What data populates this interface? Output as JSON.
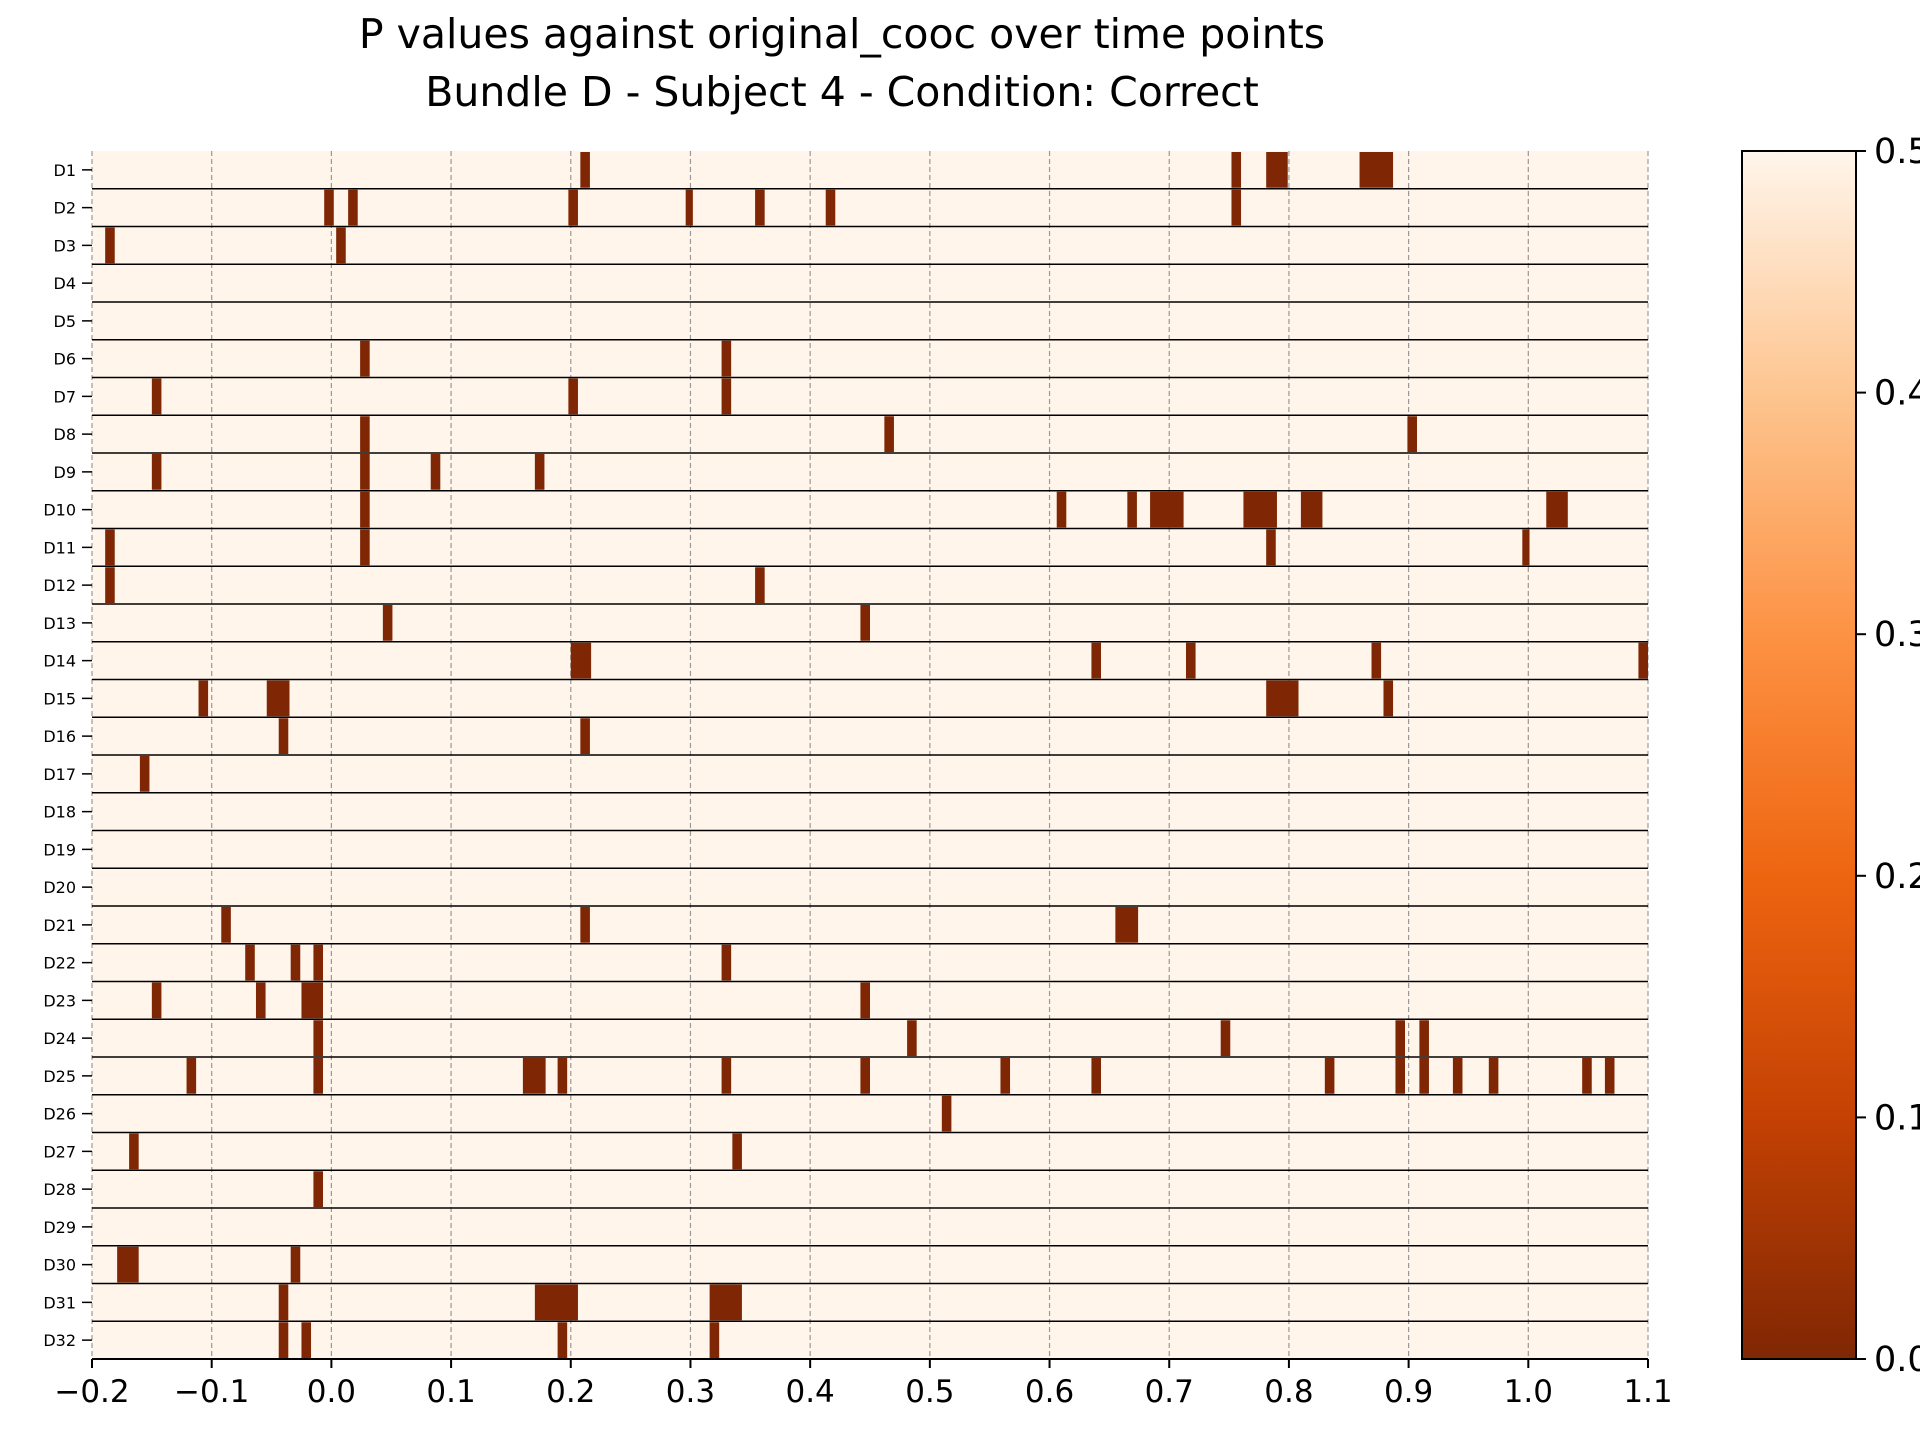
{
  "chart_data": {
    "type": "heatmap",
    "title": "P values against original_cooc over time points",
    "subtitle": "Bundle D - Subject 4 - Condition: Correct",
    "xlabel": "",
    "ylabel": "",
    "xlim": [
      -0.2,
      1.1
    ],
    "x_ticks": [
      -0.2,
      -0.1,
      0.0,
      0.1,
      0.2,
      0.3,
      0.4,
      0.5,
      0.6,
      0.7,
      0.8,
      0.9,
      1.0,
      1.1
    ],
    "x_tick_labels": [
      "−0.2",
      "−0.1",
      "0.0",
      "0.1",
      "0.2",
      "0.3",
      "0.4",
      "0.5",
      "0.6",
      "0.7",
      "0.8",
      "0.9",
      "1.0",
      "1.1"
    ],
    "rows": [
      "D1",
      "D2",
      "D3",
      "D4",
      "D5",
      "D6",
      "D7",
      "D8",
      "D9",
      "D10",
      "D11",
      "D12",
      "D13",
      "D14",
      "D15",
      "D16",
      "D17",
      "D18",
      "D19",
      "D20",
      "D21",
      "D22",
      "D23",
      "D24",
      "D25",
      "D26",
      "D27",
      "D28",
      "D29",
      "D30",
      "D31",
      "D32"
    ],
    "vertical_grid": "dashed",
    "colormap": "Oranges_r",
    "value_range": [
      0.0,
      0.5
    ],
    "background_value": 0.5,
    "colorbar": {
      "ticks": [
        0.0,
        0.1,
        0.2,
        0.3,
        0.4,
        0.5
      ],
      "tick_labels": [
        "0.0",
        "0.1",
        "0.2",
        "0.3",
        "0.4",
        "0.5"
      ],
      "colors": [
        "#7f2704",
        "#c44103",
        "#ee6510",
        "#fd9244",
        "#fdc590",
        "#fff5eb"
      ]
    },
    "significant_cells": [
      {
        "row": "D1",
        "ranges": [
          [
            0.208,
            0.216
          ],
          [
            0.752,
            0.76
          ],
          [
            0.781,
            0.799
          ],
          [
            0.859,
            0.887
          ]
        ]
      },
      {
        "row": "D2",
        "ranges": [
          [
            -0.006,
            0.002
          ],
          [
            0.014,
            0.022
          ],
          [
            0.198,
            0.206
          ],
          [
            0.296,
            0.302
          ],
          [
            0.354,
            0.362
          ],
          [
            0.413,
            0.421
          ],
          [
            0.752,
            0.76
          ]
        ]
      },
      {
        "row": "D3",
        "ranges": [
          [
            -0.189,
            -0.181
          ],
          [
            0.004,
            0.012
          ]
        ]
      },
      {
        "row": "D4",
        "ranges": []
      },
      {
        "row": "D5",
        "ranges": []
      },
      {
        "row": "D6",
        "ranges": [
          [
            0.024,
            0.032
          ],
          [
            0.326,
            0.334
          ]
        ]
      },
      {
        "row": "D7",
        "ranges": [
          [
            -0.15,
            -0.142
          ],
          [
            0.198,
            0.206
          ],
          [
            0.326,
            0.334
          ]
        ]
      },
      {
        "row": "D8",
        "ranges": [
          [
            0.024,
            0.032
          ],
          [
            0.462,
            0.47
          ],
          [
            0.899,
            0.907
          ]
        ]
      },
      {
        "row": "D9",
        "ranges": [
          [
            -0.15,
            -0.142
          ],
          [
            0.024,
            0.032
          ],
          [
            0.083,
            0.091
          ],
          [
            0.17,
            0.178
          ]
        ]
      },
      {
        "row": "D10",
        "ranges": [
          [
            0.024,
            0.032
          ],
          [
            0.606,
            0.614
          ],
          [
            0.665,
            0.673
          ],
          [
            0.684,
            0.712
          ],
          [
            0.762,
            0.79
          ],
          [
            0.81,
            0.828
          ],
          [
            1.015,
            1.033
          ]
        ]
      },
      {
        "row": "D11",
        "ranges": [
          [
            -0.189,
            -0.181
          ],
          [
            0.024,
            0.032
          ],
          [
            0.781,
            0.789
          ],
          [
            0.995,
            1.001
          ]
        ]
      },
      {
        "row": "D12",
        "ranges": [
          [
            -0.189,
            -0.181
          ],
          [
            0.354,
            0.362
          ]
        ]
      },
      {
        "row": "D13",
        "ranges": [
          [
            0.043,
            0.051
          ],
          [
            0.442,
            0.45
          ]
        ]
      },
      {
        "row": "D14",
        "ranges": [
          [
            0.2,
            0.217
          ],
          [
            0.635,
            0.643
          ],
          [
            0.714,
            0.722
          ],
          [
            0.869,
            0.877
          ],
          [
            1.092,
            1.1
          ]
        ]
      },
      {
        "row": "D15",
        "ranges": [
          [
            -0.111,
            -0.103
          ],
          [
            -0.054,
            -0.035
          ],
          [
            0.781,
            0.808
          ],
          [
            0.879,
            0.887
          ]
        ]
      },
      {
        "row": "D16",
        "ranges": [
          [
            -0.044,
            -0.036
          ],
          [
            0.208,
            0.216
          ]
        ]
      },
      {
        "row": "D17",
        "ranges": [
          [
            -0.16,
            -0.152
          ]
        ]
      },
      {
        "row": "D18",
        "ranges": []
      },
      {
        "row": "D19",
        "ranges": []
      },
      {
        "row": "D20",
        "ranges": []
      },
      {
        "row": "D21",
        "ranges": [
          [
            -0.092,
            -0.084
          ],
          [
            0.208,
            0.216
          ],
          [
            0.655,
            0.674
          ]
        ]
      },
      {
        "row": "D22",
        "ranges": [
          [
            -0.072,
            -0.064
          ],
          [
            -0.034,
            -0.026
          ],
          [
            -0.015,
            -0.007
          ],
          [
            0.326,
            0.334
          ]
        ]
      },
      {
        "row": "D23",
        "ranges": [
          [
            -0.15,
            -0.142
          ],
          [
            -0.063,
            -0.055
          ],
          [
            -0.025,
            -0.007
          ],
          [
            0.442,
            0.45
          ]
        ]
      },
      {
        "row": "D24",
        "ranges": [
          [
            -0.015,
            -0.007
          ],
          [
            0.481,
            0.489
          ],
          [
            0.743,
            0.751
          ],
          [
            0.889,
            0.897
          ],
          [
            0.909,
            0.917
          ]
        ]
      },
      {
        "row": "D25",
        "ranges": [
          [
            -0.121,
            -0.113
          ],
          [
            -0.015,
            -0.007
          ],
          [
            0.16,
            0.179
          ],
          [
            0.189,
            0.197
          ],
          [
            0.326,
            0.334
          ],
          [
            0.442,
            0.45
          ],
          [
            0.559,
            0.567
          ],
          [
            0.635,
            0.643
          ],
          [
            0.83,
            0.838
          ],
          [
            0.889,
            0.897
          ],
          [
            0.909,
            0.917
          ],
          [
            0.937,
            0.945
          ],
          [
            0.967,
            0.975
          ],
          [
            1.045,
            1.053
          ],
          [
            1.064,
            1.072
          ]
        ]
      },
      {
        "row": "D26",
        "ranges": [
          [
            0.51,
            0.518
          ]
        ]
      },
      {
        "row": "D27",
        "ranges": [
          [
            -0.169,
            -0.161
          ],
          [
            0.335,
            0.343
          ]
        ]
      },
      {
        "row": "D28",
        "ranges": [
          [
            -0.015,
            -0.007
          ]
        ]
      },
      {
        "row": "D29",
        "ranges": []
      },
      {
        "row": "D30",
        "ranges": [
          [
            -0.179,
            -0.161
          ],
          [
            -0.034,
            -0.026
          ]
        ]
      },
      {
        "row": "D31",
        "ranges": [
          [
            -0.044,
            -0.036
          ],
          [
            0.17,
            0.206
          ],
          [
            0.316,
            0.343
          ]
        ]
      },
      {
        "row": "D32",
        "ranges": [
          [
            -0.044,
            -0.036
          ],
          [
            -0.025,
            -0.017
          ],
          [
            0.189,
            0.197
          ],
          [
            0.316,
            0.324
          ]
        ]
      }
    ]
  }
}
